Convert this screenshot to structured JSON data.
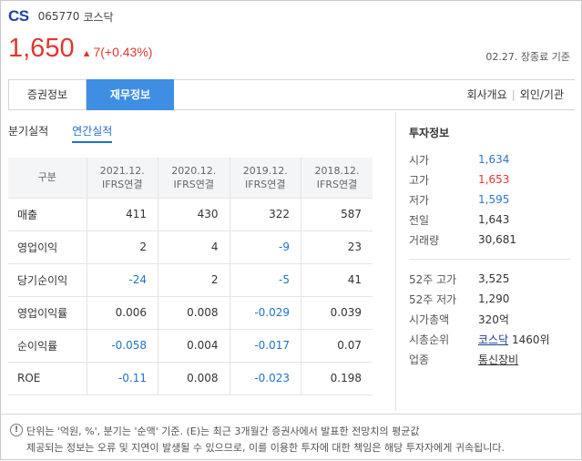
{
  "header": {
    "logo": "CS",
    "code": "065770",
    "market": "코스닥"
  },
  "price": {
    "current": "1,650",
    "change_symbol": "▲",
    "change": "7(+0.43%)",
    "as_of": "02.27. 장종료 기준",
    "accent_color": "#e0382d"
  },
  "tabs": {
    "stock_info": "증권정보",
    "financial_info": "재무정보",
    "company_overview": "회사개요",
    "foreign_institution": "외인/기관"
  },
  "subtabs": {
    "quarterly": "분기실적",
    "annual": "연간실적"
  },
  "table": {
    "header_label": "구분",
    "columns": [
      [
        "2021.12.",
        "IFRS연결"
      ],
      [
        "2020.12.",
        "IFRS연결"
      ],
      [
        "2019.12.",
        "IFRS연결"
      ],
      [
        "2018.12.",
        "IFRS연결"
      ]
    ],
    "rows": [
      {
        "label": "매출",
        "values": [
          "411",
          "430",
          "322",
          "587"
        ]
      },
      {
        "label": "영업이익",
        "values": [
          "2",
          "4",
          "-9",
          "23"
        ]
      },
      {
        "label": "당기순이익",
        "values": [
          "-24",
          "2",
          "-5",
          "41"
        ]
      },
      {
        "label": "영업이익률",
        "values": [
          "0.006",
          "0.008",
          "-0.029",
          "0.039"
        ]
      },
      {
        "label": "순이익률",
        "values": [
          "-0.058",
          "0.004",
          "-0.017",
          "0.07"
        ]
      },
      {
        "label": "ROE",
        "values": [
          "-0.11",
          "0.008",
          "-0.023",
          "0.198"
        ]
      }
    ]
  },
  "invest_info": {
    "title": "투자정보",
    "open_label": "시가",
    "open": "1,634",
    "high_label": "고가",
    "high": "1,653",
    "low_label": "저가",
    "low": "1,595",
    "prev_label": "전일",
    "prev": "1,643",
    "volume_label": "거래량",
    "volume": "30,681",
    "high52_label": "52주 고가",
    "high52": "3,525",
    "low52_label": "52주 저가",
    "low52": "1,290",
    "mktcap_label": "시가총액",
    "mktcap": "320억",
    "rank_label": "시총순위",
    "rank_market": "코스닥",
    "rank": "1460위",
    "sector_label": "업종",
    "sector": "통신장비"
  },
  "notice": {
    "icon": "!",
    "line1": "단위는 '억원, %', 분기는 '순액' 기준. (E)는 최근 3개월간 증권사에서 발표한 전망치의 평균값",
    "line2": "제공되는 정보는 오류 및 지연이 발생될 수 있으므로, 이를 이용한 투자에 대한 책임은 해당 투자자에게 귀속됩니다."
  }
}
